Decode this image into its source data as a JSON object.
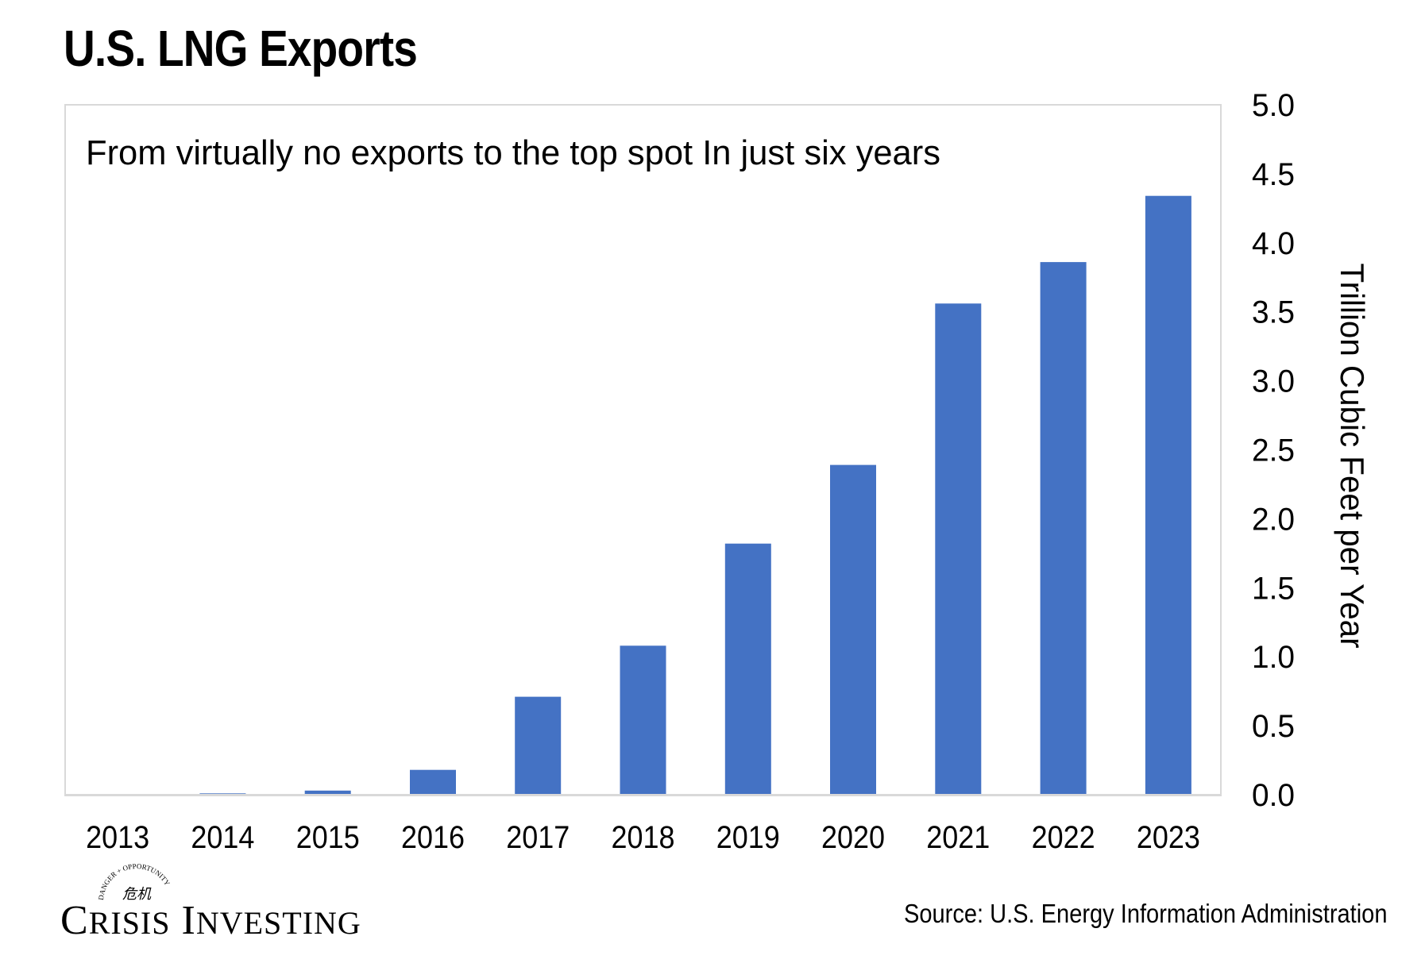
{
  "page": {
    "title": "U.S. LNG Exports",
    "source": "Source: U.S. Energy Information Administration",
    "logo": {
      "name_line": "CRISIS INVESTING",
      "name_first_big": "C",
      "name_first_rest": "RISIS",
      "name_second_big": "I",
      "name_second_rest": "NVESTING",
      "arc_text": "DANGER + OPPORTUNITY",
      "glyphs": "危机"
    }
  },
  "chart_data": {
    "type": "bar",
    "subtitle": "From virtually no exports to the top spot In just six years",
    "categories": [
      "2013",
      "2014",
      "2015",
      "2016",
      "2017",
      "2018",
      "2019",
      "2020",
      "2021",
      "2022",
      "2023"
    ],
    "values": [
      0.0,
      0.01,
      0.03,
      0.18,
      0.71,
      1.08,
      1.82,
      2.39,
      3.56,
      3.86,
      4.34
    ],
    "ylabel": "Trillion Cubic Feet per Year",
    "ylim": [
      0,
      5.0
    ],
    "yticks": [
      "0.0",
      "0.5",
      "1.0",
      "1.5",
      "2.0",
      "2.5",
      "3.0",
      "3.5",
      "4.0",
      "4.5",
      "5.0"
    ],
    "y_axis_side": "right",
    "grid": false,
    "legend": "none",
    "bar_color": "#4472c4"
  }
}
